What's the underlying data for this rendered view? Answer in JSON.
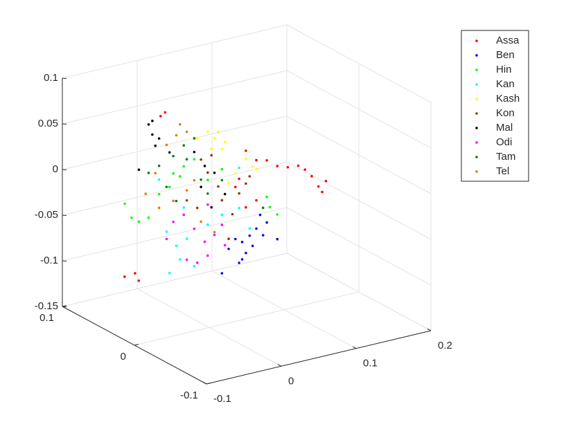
{
  "chart_data": {
    "type": "scatter3",
    "xlim": [
      -0.1,
      0.2
    ],
    "xticks": [
      -0.1,
      0,
      0.1,
      0.2
    ],
    "ylim": [
      -0.1,
      0.1
    ],
    "yticks": [
      -0.1,
      0,
      0.1
    ],
    "zlim": [
      -0.15,
      0.1
    ],
    "zticks": [
      -0.15,
      -0.1,
      -0.05,
      0,
      0.05,
      0.1
    ],
    "grid": true,
    "series": [
      {
        "name": "Assa",
        "color": "#ff0000",
        "x": [
          0.146,
          0.156,
          0.137,
          0.128,
          0.151,
          0.119,
          0.105,
          0.091,
          0.077,
          0.063,
          0.049,
          -0.059,
          -0.065,
          -0.065,
          -0.051,
          -0.046,
          0.04,
          0.063,
          0.049,
          0.035
        ],
        "y": [
          0,
          0,
          0,
          0,
          0,
          0,
          0,
          0,
          0,
          0,
          0,
          0,
          0,
          0.05,
          0.05,
          0.05,
          0,
          0,
          0,
          0
        ],
        "z": [
          -0.024,
          -0.02,
          -0.011,
          -0.002,
          -0.031,
          0.004,
          0.005,
          0.009,
          0.018,
          0.021,
          0.034,
          0.097,
          0.094,
          -0.103,
          -0.102,
          -0.111,
          0.005,
          -0.023,
          -0.028,
          -0.003
        ]
      },
      {
        "name": "Ben",
        "color": "#0000ff",
        "x": [
          0.044,
          0.054,
          0.035,
          0.049,
          0.04,
          0.063,
          0.077,
          0.072,
          0.091,
          0.017,
          0.026,
          0.058,
          0.068,
          0.044
        ],
        "y": [
          0,
          0,
          0,
          0,
          0,
          0,
          0,
          0,
          0,
          0,
          0,
          0,
          0,
          0
        ],
        "z": [
          -0.065,
          -0.06,
          -0.06,
          -0.078,
          -0.087,
          -0.054,
          -0.05,
          -0.063,
          -0.071,
          -0.094,
          -0.069,
          -0.072,
          -0.04,
          -0.084
        ]
      },
      {
        "name": "Hin",
        "color": "#00ff00",
        "x": [
          -0.084,
          -0.075,
          -0.081,
          -0.067,
          -0.048,
          -0.034,
          -0.02,
          -0.002,
          0.017,
          0.081,
          0.091,
          0.077,
          -0.053,
          -0.039,
          -0.094
        ],
        "y": [
          0.03,
          0.03,
          0,
          0,
          0,
          0,
          0,
          0,
          0,
          0,
          0,
          0,
          0,
          0,
          0
        ],
        "z": [
          -0.011,
          -0.028,
          -0.014,
          0.009,
          0.028,
          0.033,
          0.038,
          0.012,
          0.02,
          -0.034,
          -0.044,
          -0.022,
          0.014,
          0.023,
          -0.016
        ]
      },
      {
        "name": "Kan",
        "color": "#00ffff",
        "x": [
          -0.053,
          -0.039,
          -0.044,
          -0.03,
          -0.057,
          -0.02,
          -0.002,
          0.017,
          0.04,
          0.054,
          -0.067,
          0.04,
          -0.034
        ],
        "y": [
          0,
          0,
          0,
          0,
          0,
          0,
          0,
          0,
          0,
          0,
          0,
          0,
          0
        ],
        "z": [
          -0.08,
          -0.068,
          -0.052,
          -0.047,
          -0.034,
          -0.079,
          -0.037,
          -0.03,
          -0.027,
          -0.052,
          0.025,
          0.017,
          -0.012
        ]
      },
      {
        "name": "Kash",
        "color": "#ffff00",
        "x": [
          -0.002,
          0.007,
          0.017,
          0.003,
          0.021,
          0.012,
          0.035,
          0.049,
          0.063,
          -0.016,
          0.026,
          0.058
        ],
        "y": [
          0,
          0,
          0,
          0,
          0,
          0,
          0,
          0,
          0,
          0,
          0,
          0
        ],
        "z": [
          0.065,
          0.056,
          0.042,
          0.045,
          0.049,
          0.062,
          0.012,
          0.025,
          0.011,
          0.06,
          0.003,
          0.015
        ]
      },
      {
        "name": "Kon",
        "color": "#993300",
        "x": [
          -0.011,
          -0.002,
          0.012,
          0.017,
          0.031,
          0.04,
          0.049,
          0.026,
          -0.03,
          -0.016,
          0.054,
          0.003
        ],
        "y": [
          0,
          0,
          0,
          0,
          0,
          0,
          0,
          0,
          0,
          0,
          0,
          0
        ],
        "z": [
          0.036,
          0.02,
          0.002,
          -0.014,
          -0.032,
          -0.011,
          -0.002,
          -0.058,
          -0.005,
          -0.016,
          0.005,
          0.038
        ]
      },
      {
        "name": "Mal",
        "color": "#000000",
        "x": [
          -0.081,
          -0.076,
          -0.072,
          -0.067,
          -0.076,
          -0.094,
          -0.053,
          -0.02,
          -0.006,
          0.007,
          -0.011,
          0.003,
          0.021
        ],
        "y": [
          0,
          0,
          0,
          0,
          0,
          0,
          0,
          0,
          0,
          0,
          0,
          0,
          0
        ],
        "z": [
          0.088,
          0.076,
          0.063,
          0.07,
          0.091,
          0.041,
          0.052,
          0.046,
          0.028,
          0.018,
          0.006,
          -0.019,
          -0.008
        ]
      },
      {
        "name": "Odi",
        "color": "#ff00ff",
        "x": [
          -0.048,
          -0.034,
          -0.02,
          -0.006,
          -0.002,
          -0.016,
          0.007,
          0.017,
          -0.002,
          -0.057,
          0.021,
          -0.03
        ],
        "y": [
          0,
          0,
          0,
          0,
          0,
          0,
          0,
          0,
          0,
          0,
          0,
          0
        ],
        "z": [
          -0.025,
          -0.02,
          -0.038,
          -0.055,
          -0.071,
          -0.076,
          -0.05,
          -0.041,
          -0.015,
          -0.042,
          -0.064,
          -0.07
        ]
      },
      {
        "name": "Tam",
        "color": "#007f00",
        "x": [
          -0.067,
          -0.048,
          -0.034,
          -0.02,
          -0.03,
          -0.011,
          -0.002,
          -0.081,
          -0.044,
          0.017,
          -0.057,
          0.072
        ],
        "y": [
          0,
          0,
          0,
          0,
          0,
          0,
          0,
          0,
          0,
          0,
          0,
          0
        ],
        "z": [
          0.04,
          0.047,
          0.056,
          0.061,
          0.04,
          0.014,
          -0.003,
          0.035,
          -0.003,
          0.008,
          0.015,
          -0.033
        ]
      },
      {
        "name": "Tel",
        "color": "#e07b00",
        "x": [
          -0.039,
          -0.03,
          -0.044,
          -0.057,
          -0.072,
          -0.085,
          -0.067,
          -0.048,
          -0.03,
          -0.011,
          0.007,
          -0.02
        ],
        "y": [
          0,
          0,
          0,
          0,
          0,
          0,
          0,
          0,
          0,
          0,
          0,
          0
        ],
        "z": [
          0.08,
          0.07,
          0.069,
          0.061,
          0.033,
          0.013,
          -0.006,
          -0.002,
          0.006,
          -0.032,
          -0.047,
          0.015
        ]
      }
    ]
  }
}
